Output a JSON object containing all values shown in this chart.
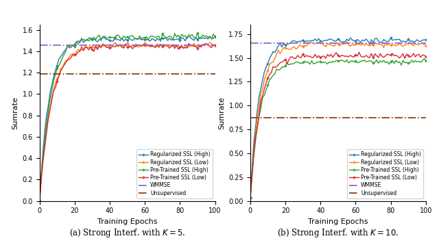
{
  "subplot1": {
    "xlabel": "Training Epochs",
    "ylabel": "Sumrate",
    "xlim": [
      0,
      100
    ],
    "ylim": [
      0.0,
      1.65
    ],
    "yticks": [
      0.0,
      0.2,
      0.4,
      0.6,
      0.8,
      1.0,
      1.2,
      1.4,
      1.6
    ],
    "xticks": [
      0,
      20,
      40,
      60,
      80,
      100
    ],
    "wmmse_level": 1.455,
    "unsupervised_level": 1.19,
    "caption": "(a) Strong Interf. with $K=5$."
  },
  "subplot2": {
    "xlabel": "Training Epochs",
    "ylabel": "Sumrate",
    "xlim": [
      0,
      100
    ],
    "ylim": [
      0.0,
      1.85
    ],
    "yticks": [
      0.0,
      0.25,
      0.5,
      0.75,
      1.0,
      1.25,
      1.5,
      1.75
    ],
    "xticks": [
      0,
      20,
      40,
      60,
      80,
      100
    ],
    "wmmse_level": 1.655,
    "unsupervised_level": 0.875,
    "caption": "(b) Strong Interf. with $K=10$."
  },
  "colors": {
    "reg_ssl_high": "#1f77b4",
    "reg_ssl_low": "#ff7f0e",
    "pre_ssl_high": "#2ca02c",
    "pre_ssl_low": "#d62728",
    "wmmse": "#9467bd",
    "unsupervised": "#8B4513"
  },
  "legend_labels": [
    "Regularized SSL (High)",
    "Regularized SSL (Low)",
    "Pre-Trained SSL (High)",
    "Pre-Trained SSL (Low)",
    "WMMSE",
    "Unsupervised"
  ],
  "n_epochs": 101
}
